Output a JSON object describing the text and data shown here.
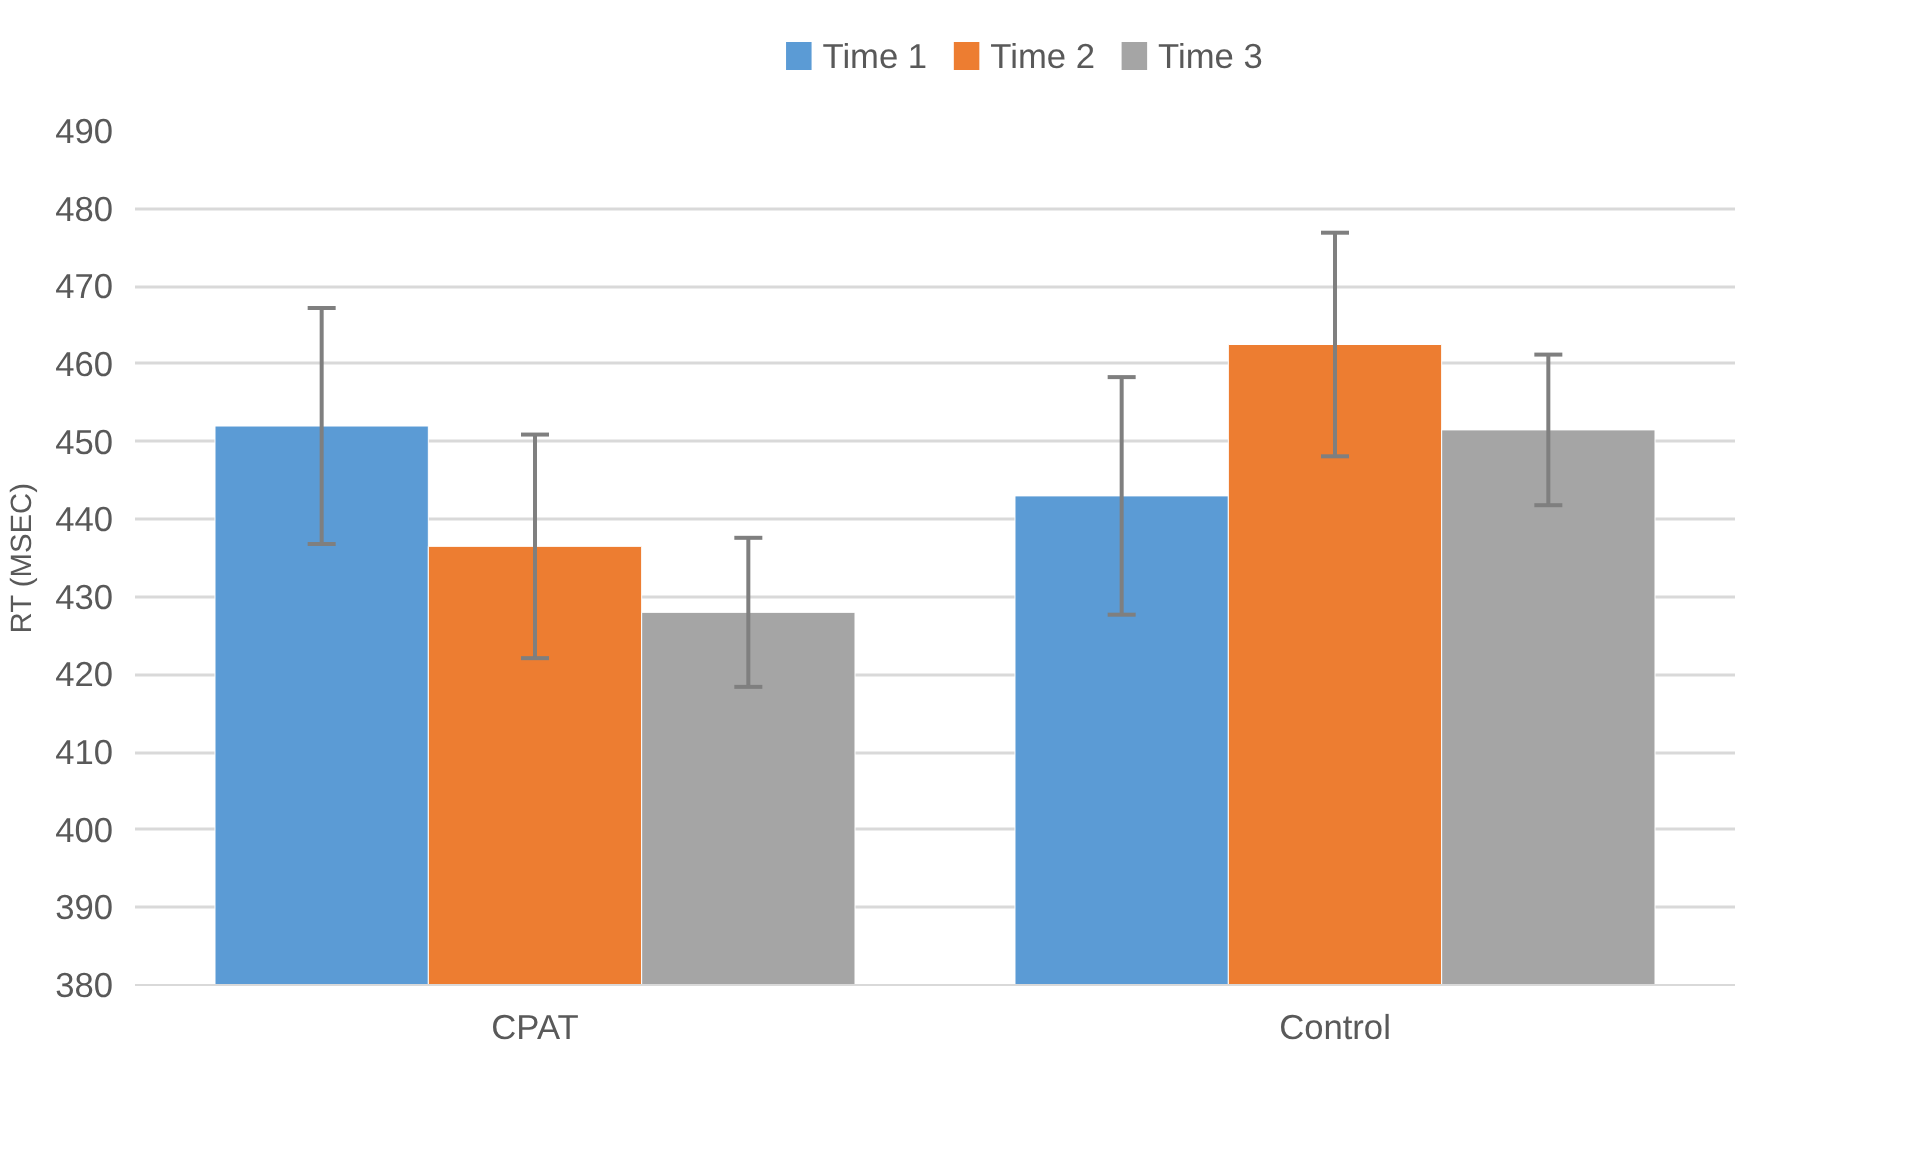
{
  "chart_data": {
    "type": "bar",
    "ylabel": "RT (MSEC)",
    "categories": [
      "CPAT",
      "Control"
    ],
    "series": [
      {
        "name": "Time 1",
        "color": "#5b9bd5",
        "values": [
          452,
          443
        ],
        "errors": [
          15.2,
          15.3
        ]
      },
      {
        "name": "Time 2",
        "color": "#ed7d31",
        "values": [
          436.5,
          462.5
        ],
        "errors": [
          14.4,
          14.4
        ]
      },
      {
        "name": "Time 3",
        "color": "#a5a5a5",
        "values": [
          428,
          451.5
        ],
        "errors": [
          9.6,
          9.7
        ]
      }
    ],
    "ylim": [
      380,
      490
    ],
    "yticks": [
      380,
      390,
      400,
      410,
      420,
      430,
      440,
      450,
      460,
      470,
      480,
      490
    ],
    "grid": "y",
    "legend": "top"
  }
}
